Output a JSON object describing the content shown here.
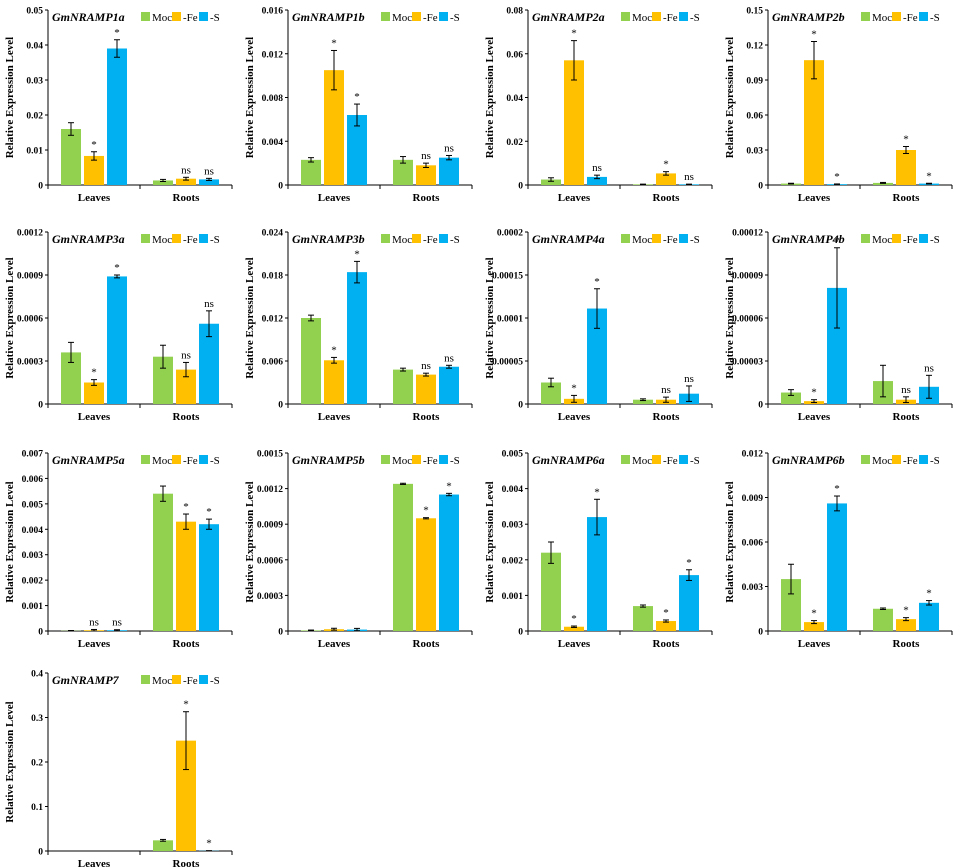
{
  "figure": {
    "description_hidden": ""
  },
  "legend_labels": [
    "Mock",
    "-Fe",
    "-S"
  ],
  "colors": {
    "Mock": "#92D050",
    "-Fe": "#FFC000",
    "-S": "#00B0F0"
  },
  "ylabel": "Relative Expression Level",
  "categories": [
    "Leaves",
    "Roots"
  ],
  "chart_data": [
    {
      "type": "bar",
      "title": "GmNRAMP1a",
      "ylabel": "Relative Expression Level",
      "categories": [
        "Leaves",
        "Roots"
      ],
      "yticks": [
        "0",
        "0.01",
        "0.02",
        "0.03",
        "0.04",
        "0.05"
      ],
      "ylim": [
        0,
        0.05
      ],
      "series": [
        {
          "name": "Mock",
          "values": [
            0.016,
            0.0013
          ],
          "errors": [
            0.0018,
            0.0003
          ],
          "sig": [
            "",
            ""
          ]
        },
        {
          "name": "-Fe",
          "values": [
            0.0083,
            0.0018
          ],
          "errors": [
            0.0012,
            0.0004
          ],
          "sig": [
            "*",
            "ns"
          ]
        },
        {
          "name": "-S",
          "values": [
            0.039,
            0.0016
          ],
          "errors": [
            0.0025,
            0.0003
          ],
          "sig": [
            "*",
            "ns"
          ]
        }
      ]
    },
    {
      "type": "bar",
      "title": "GmNRAMP1b",
      "ylabel": "Relative Expression Level",
      "categories": [
        "Leaves",
        "Roots"
      ],
      "yticks": [
        "0",
        "0.004",
        "0.008",
        "0.012",
        "0.016"
      ],
      "ylim": [
        0,
        0.016
      ],
      "series": [
        {
          "name": "Mock",
          "values": [
            0.0023,
            0.0023
          ],
          "errors": [
            0.0002,
            0.0003
          ],
          "sig": [
            "",
            ""
          ]
        },
        {
          "name": "-Fe",
          "values": [
            0.0105,
            0.0018
          ],
          "errors": [
            0.0018,
            0.0002
          ],
          "sig": [
            "*",
            "ns"
          ]
        },
        {
          "name": "-S",
          "values": [
            0.0064,
            0.0025
          ],
          "errors": [
            0.001,
            0.0002
          ],
          "sig": [
            "*",
            "ns"
          ]
        }
      ]
    },
    {
      "type": "bar",
      "title": "GmNRAMP2a",
      "ylabel": "Relative Expression Level",
      "categories": [
        "Leaves",
        "Roots"
      ],
      "yticks": [
        "0",
        "0.02",
        "0.04",
        "0.06",
        "0.08"
      ],
      "ylim": [
        0,
        0.08
      ],
      "series": [
        {
          "name": "Mock",
          "values": [
            0.0025,
            0.0003
          ],
          "errors": [
            0.0008,
            0.0001
          ],
          "sig": [
            "",
            ""
          ]
        },
        {
          "name": "-Fe",
          "values": [
            0.057,
            0.0053
          ],
          "errors": [
            0.009,
            0.0008
          ],
          "sig": [
            "*",
            "*"
          ]
        },
        {
          "name": "-S",
          "values": [
            0.0037,
            0.0003
          ],
          "errors": [
            0.0008,
            0.0001
          ],
          "sig": [
            "ns",
            "ns"
          ]
        }
      ]
    },
    {
      "type": "bar",
      "title": "GmNRAMP2b",
      "ylabel": "Relative Expression Level",
      "categories": [
        "Leaves",
        "Roots"
      ],
      "yticks": [
        "0",
        "0.03",
        "0.06",
        "0.09",
        "0.12",
        "0.15"
      ],
      "ylim": [
        0,
        0.15
      ],
      "series": [
        {
          "name": "Mock",
          "values": [
            0.0012,
            0.0018
          ],
          "errors": [
            0.0003,
            0.0004
          ],
          "sig": [
            "",
            ""
          ]
        },
        {
          "name": "-Fe",
          "values": [
            0.107,
            0.03
          ],
          "errors": [
            0.016,
            0.003
          ],
          "sig": [
            "*",
            "*"
          ]
        },
        {
          "name": "-S",
          "values": [
            0.0007,
            0.0012
          ],
          "errors": [
            0.0002,
            0.0003
          ],
          "sig": [
            "*",
            "*"
          ]
        }
      ]
    },
    {
      "type": "bar",
      "title": "GmNRAMP3a",
      "ylabel": "Relative Expression Level",
      "categories": [
        "Leaves",
        "Roots"
      ],
      "yticks": [
        "0",
        "0.0003",
        "0.0006",
        "0.0009",
        "0.0012"
      ],
      "ylim": [
        0,
        0.0012
      ],
      "series": [
        {
          "name": "Mock",
          "values": [
            0.00036,
            0.00033
          ],
          "errors": [
            7e-05,
            8e-05
          ],
          "sig": [
            "",
            ""
          ]
        },
        {
          "name": "-Fe",
          "values": [
            0.00015,
            0.00024
          ],
          "errors": [
            2e-05,
            5e-05
          ],
          "sig": [
            "*",
            "ns"
          ]
        },
        {
          "name": "-S",
          "values": [
            0.00089,
            0.00056
          ],
          "errors": [
            1e-05,
            9e-05
          ],
          "sig": [
            "*",
            "ns"
          ]
        }
      ]
    },
    {
      "type": "bar",
      "title": "GmNRAMP3b",
      "ylabel": "Relative Expression Level",
      "categories": [
        "Leaves",
        "Roots"
      ],
      "yticks": [
        "0",
        "0.006",
        "0.012",
        "0.018",
        "0.024"
      ],
      "ylim": [
        0,
        0.024
      ],
      "series": [
        {
          "name": "Mock",
          "values": [
            0.012,
            0.0048
          ],
          "errors": [
            0.0004,
            0.0002
          ],
          "sig": [
            "",
            ""
          ]
        },
        {
          "name": "-Fe",
          "values": [
            0.0061,
            0.0041
          ],
          "errors": [
            0.0004,
            0.0002
          ],
          "sig": [
            "*",
            "ns"
          ]
        },
        {
          "name": "-S",
          "values": [
            0.0184,
            0.0052
          ],
          "errors": [
            0.0015,
            0.0002
          ],
          "sig": [
            "*",
            "ns"
          ]
        }
      ]
    },
    {
      "type": "bar",
      "title": "GmNRAMP4a",
      "ylabel": "Relative Expression Level",
      "categories": [
        "Leaves",
        "Roots"
      ],
      "yticks": [
        "0",
        "0.00005",
        "0.0001",
        "0.00015",
        "0.0002"
      ],
      "ylim": [
        0,
        0.0002
      ],
      "series": [
        {
          "name": "Mock",
          "values": [
            2.5e-05,
            5e-06
          ],
          "errors": [
            5e-06,
            1e-06
          ],
          "sig": [
            "",
            ""
          ]
        },
        {
          "name": "-Fe",
          "values": [
            6e-06,
            5e-06
          ],
          "errors": [
            4e-06,
            3e-06
          ],
          "sig": [
            "*",
            "ns"
          ]
        },
        {
          "name": "-S",
          "values": [
            0.000111,
            1.2e-05
          ],
          "errors": [
            2.3e-05,
            9e-06
          ],
          "sig": [
            "*",
            "ns"
          ]
        }
      ]
    },
    {
      "type": "bar",
      "title": "GmNRAMP4b",
      "ylabel": "Relative Expression Level",
      "categories": [
        "Leaves",
        "Roots"
      ],
      "yticks": [
        "0",
        "0.00003",
        "0.00006",
        "0.00009",
        "0.00012"
      ],
      "ylim": [
        0,
        0.00012
      ],
      "series": [
        {
          "name": "Mock",
          "values": [
            8e-06,
            1.6e-05
          ],
          "errors": [
            2e-06,
            1.1e-05
          ],
          "sig": [
            "",
            ""
          ]
        },
        {
          "name": "-Fe",
          "values": [
            2e-06,
            3e-06
          ],
          "errors": [
            1e-06,
            2e-06
          ],
          "sig": [
            "*",
            "ns"
          ]
        },
        {
          "name": "-S",
          "values": [
            8.1e-05,
            1.2e-05
          ],
          "errors": [
            2.8e-05,
            8e-06
          ],
          "sig": [
            "*",
            "ns"
          ]
        }
      ]
    },
    {
      "type": "bar",
      "title": "GmNRAMP5a",
      "ylabel": "Relative Expression Level",
      "categories": [
        "Leaves",
        "Roots"
      ],
      "yticks": [
        "0",
        "0.001",
        "0.002",
        "0.003",
        "0.004",
        "0.005",
        "0.006",
        "0.007"
      ],
      "ylim": [
        0,
        0.007
      ],
      "series": [
        {
          "name": "Mock",
          "values": [
            1e-05,
            0.0054
          ],
          "errors": [
            1e-05,
            0.0003
          ],
          "sig": [
            "",
            ""
          ]
        },
        {
          "name": "-Fe",
          "values": [
            3e-05,
            0.0043
          ],
          "errors": [
            3e-05,
            0.0003
          ],
          "sig": [
            "ns",
            "*"
          ]
        },
        {
          "name": "-S",
          "values": [
            3e-05,
            0.0042
          ],
          "errors": [
            2e-05,
            0.0002
          ],
          "sig": [
            "ns",
            "*"
          ]
        }
      ]
    },
    {
      "type": "bar",
      "title": "GmNRAMP5b",
      "ylabel": "Relative Expression Level",
      "categories": [
        "Leaves",
        "Roots"
      ],
      "yticks": [
        "0",
        "0.0003",
        "0.0006",
        "0.0009",
        "0.0012",
        "0.0015"
      ],
      "ylim": [
        0,
        0.0015
      ],
      "series": [
        {
          "name": "Mock",
          "values": [
            5e-06,
            0.00124
          ],
          "errors": [
            3e-06,
            5e-06
          ],
          "sig": [
            "",
            ""
          ]
        },
        {
          "name": "-Fe",
          "values": [
            1.5e-05,
            0.00095
          ],
          "errors": [
            8e-06,
            5e-06
          ],
          "sig": [
            "",
            "*"
          ]
        },
        {
          "name": "-S",
          "values": [
            1.2e-05,
            0.00115
          ],
          "errors": [
            1e-05,
            1e-05
          ],
          "sig": [
            "",
            "*"
          ]
        }
      ]
    },
    {
      "type": "bar",
      "title": "GmNRAMP6a",
      "ylabel": "Relative Expression Level",
      "categories": [
        "Leaves",
        "Roots"
      ],
      "yticks": [
        "0",
        "0.001",
        "0.002",
        "0.003",
        "0.004",
        "0.005"
      ],
      "ylim": [
        0,
        0.005
      ],
      "series": [
        {
          "name": "Mock",
          "values": [
            0.0022,
            0.0007
          ],
          "errors": [
            0.0003,
            3e-05
          ],
          "sig": [
            "",
            ""
          ]
        },
        {
          "name": "-Fe",
          "values": [
            0.00012,
            0.00028
          ],
          "errors": [
            2e-05,
            3e-05
          ],
          "sig": [
            "*",
            "*"
          ]
        },
        {
          "name": "-S",
          "values": [
            0.0032,
            0.00157
          ],
          "errors": [
            0.0005,
            0.00015
          ],
          "sig": [
            "*",
            "*"
          ]
        }
      ]
    },
    {
      "type": "bar",
      "title": "GmNRAMP6b",
      "ylabel": "Relative Expression Level",
      "categories": [
        "Leaves",
        "Roots"
      ],
      "yticks": [
        "0",
        "0.003",
        "0.006",
        "0.009",
        "0.012"
      ],
      "ylim": [
        0,
        0.012
      ],
      "series": [
        {
          "name": "Mock",
          "values": [
            0.0035,
            0.0015
          ],
          "errors": [
            0.001,
            5e-05
          ],
          "sig": [
            "",
            ""
          ]
        },
        {
          "name": "-Fe",
          "values": [
            0.0006,
            0.0008
          ],
          "errors": [
            0.0001,
            0.0001
          ],
          "sig": [
            "*",
            "*"
          ]
        },
        {
          "name": "-S",
          "values": [
            0.0086,
            0.0019
          ],
          "errors": [
            0.0005,
            0.00015
          ],
          "sig": [
            "*",
            "*"
          ]
        }
      ]
    },
    {
      "type": "bar",
      "title": "GmNRAMP7",
      "ylabel": "Relative Expression Level",
      "categories": [
        "Leaves",
        "Roots"
      ],
      "yticks": [
        "0",
        "0.1",
        "0.2",
        "0.3",
        "0.4"
      ],
      "ylim": [
        0,
        0.4
      ],
      "series": [
        {
          "name": "Mock",
          "values": [
            0,
            0.024
          ],
          "errors": [
            0,
            0.002
          ],
          "sig": [
            "",
            ""
          ]
        },
        {
          "name": "-Fe",
          "values": [
            0,
            0.248
          ],
          "errors": [
            0,
            0.065
          ],
          "sig": [
            "",
            "*"
          ]
        },
        {
          "name": "-S",
          "values": [
            0,
            0.0005
          ],
          "errors": [
            0,
            0.0002
          ],
          "sig": [
            "",
            "*"
          ]
        }
      ]
    }
  ]
}
